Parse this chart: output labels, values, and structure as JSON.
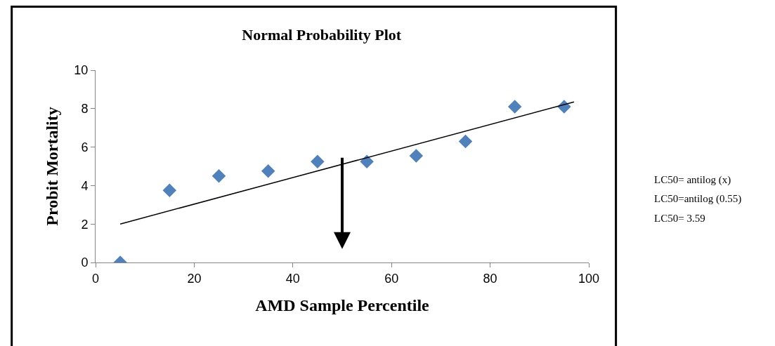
{
  "chart_data": {
    "type": "scatter",
    "title": "Normal Probability Plot",
    "xlabel": "AMD Sample Percentile",
    "ylabel": "Probit Mortality",
    "series": [
      {
        "color": "#4f81bd",
        "marker": "diamond",
        "x": [
          5,
          15,
          25,
          35,
          45,
          55,
          65,
          75,
          85,
          95
        ],
        "values": [
          0,
          3.75,
          4.5,
          4.75,
          5.25,
          5.25,
          5.55,
          6.3,
          8.1,
          8.1
        ]
      },
      {
        "type": "line",
        "color": "#000000",
        "marker": "none",
        "line_style": "solid",
        "x": [
          5,
          97
        ],
        "values": [
          2.0,
          8.35
        ]
      }
    ],
    "xlim": [
      0,
      100
    ],
    "xticks": [
      0,
      20,
      40,
      60,
      80,
      100
    ],
    "ylim": [
      0,
      10
    ],
    "yticks": [
      0,
      2,
      4,
      6,
      8,
      10
    ],
    "annotations": [
      "LC50= antilog (x)",
      "LC50=antilog (0.55)",
      "LC50= 3.59"
    ]
  }
}
